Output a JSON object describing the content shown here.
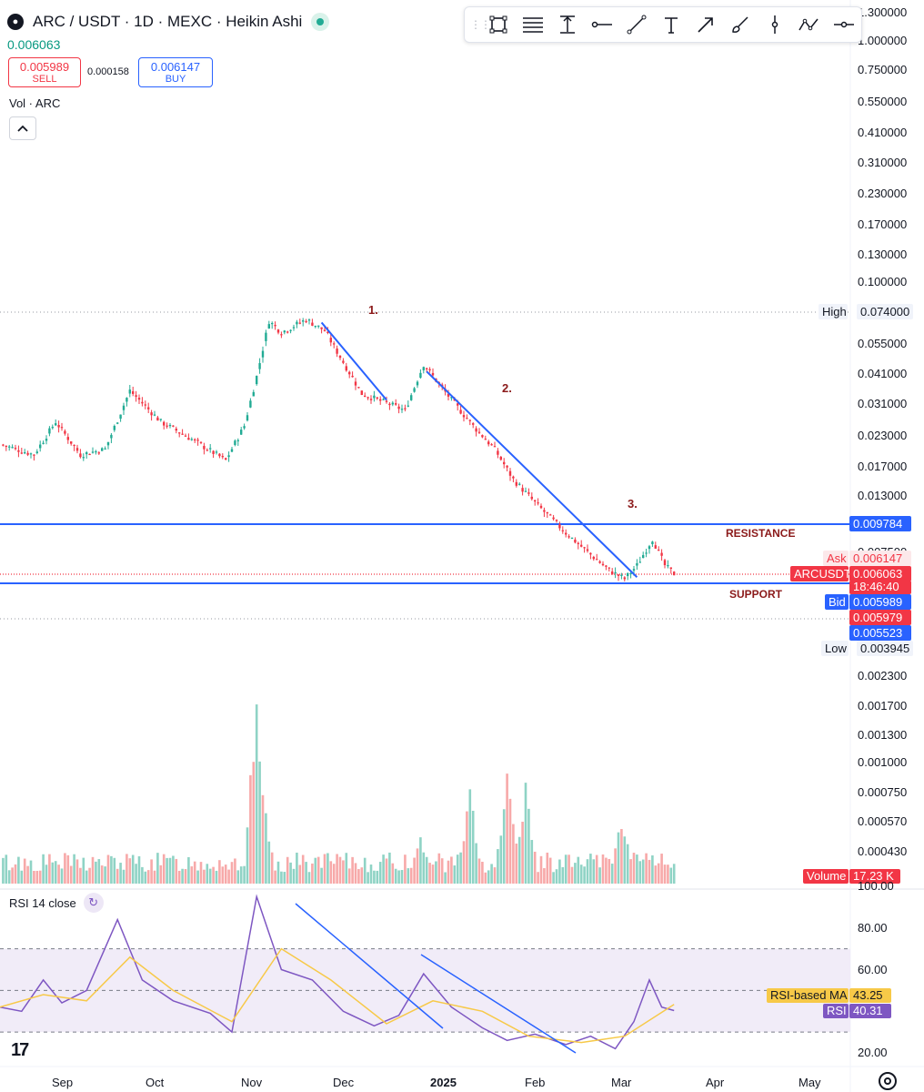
{
  "header": {
    "title": "ARC / USDT · 1D · MEXC · Heikin Ashi",
    "last_price": "0.006063"
  },
  "trade": {
    "sell_price": "0.005989",
    "sell_label": "SELL",
    "spread": "0.000158",
    "buy_price": "0.006147",
    "buy_label": "BUY"
  },
  "volume_indicator": {
    "label": "Vol · ARC",
    "collapse_icon": "chevron-up-icon"
  },
  "toolbar": {
    "icons": [
      "grip-icon",
      "rectangle-icon",
      "fib-retracement-icon",
      "price-range-icon",
      "horizontal-ray-icon",
      "trend-line-icon",
      "text-icon",
      "arrow-icon",
      "brush-icon",
      "vertical-line-icon",
      "path-icon",
      "horizontal-line-icon"
    ]
  },
  "rsi_indicator": {
    "label": "RSI 14 close",
    "icon": "refresh-icon"
  },
  "colors": {
    "up": "#22ab94",
    "down": "#f23645",
    "level_line": "#2962ff",
    "annotation": "#8b1a1a",
    "rsi": "#7e57c2",
    "rsi_ma": "#f7c948",
    "rsi_band": "#ede7f6"
  },
  "chart_data": [
    {
      "type": "candlestick",
      "style": "Heikin Ashi",
      "scale": "log",
      "price_axis_ticks": [
        "1.300000",
        "1.000000",
        "0.750000",
        "0.550000",
        "0.410000",
        "0.310000",
        "0.230000",
        "0.170000",
        "0.130000",
        "0.100000",
        "0.074000",
        "0.055000",
        "0.041000",
        "0.031000",
        "0.023000",
        "0.017000",
        "0.013000",
        "0.009784",
        "0.007500",
        "0.006147",
        "0.006063",
        "0.005989",
        "0.005979",
        "0.005523",
        "0.003945"
      ],
      "time_axis_ticks": [
        "Sep",
        "Oct",
        "Nov",
        "Dec",
        "2025",
        "Feb",
        "Mar",
        "Apr",
        "May"
      ],
      "price_path": [
        [
          "2024-08-25",
          0.021
        ],
        [
          "2024-09-05",
          0.019
        ],
        [
          "2024-09-12",
          0.026
        ],
        [
          "2024-09-20",
          0.019
        ],
        [
          "2024-09-28",
          0.02
        ],
        [
          "2024-10-06",
          0.035
        ],
        [
          "2024-10-16",
          0.026
        ],
        [
          "2024-10-26",
          0.022
        ],
        [
          "2024-11-06",
          0.018
        ],
        [
          "2024-11-12",
          0.025
        ],
        [
          "2024-11-16",
          0.04
        ],
        [
          "2024-11-20",
          0.068
        ],
        [
          "2024-11-24",
          0.061
        ],
        [
          "2024-12-02",
          0.069
        ],
        [
          "2024-12-08",
          0.062
        ],
        [
          "2024-12-20",
          0.034
        ],
        [
          "2025-01-03",
          0.029
        ],
        [
          "2025-01-09",
          0.045
        ],
        [
          "2025-01-18",
          0.032
        ],
        [
          "2025-01-25",
          0.025
        ],
        [
          "2025-02-01",
          0.02
        ],
        [
          "2025-02-07",
          0.015
        ],
        [
          "2025-02-14",
          0.012
        ],
        [
          "2025-02-24",
          0.009
        ],
        [
          "2025-03-03",
          0.0075
        ],
        [
          "2025-03-10",
          0.0063
        ],
        [
          "2025-03-15",
          0.0058
        ],
        [
          "2025-03-19",
          0.0066
        ],
        [
          "2025-03-24",
          0.0085
        ],
        [
          "2025-03-28",
          0.0066
        ],
        [
          "2025-03-31",
          0.0061
        ]
      ],
      "levels": [
        {
          "label": "RESISTANCE",
          "price": 0.009784
        },
        {
          "label": "SUPPORT",
          "price": 0.005979
        }
      ],
      "annotations": [
        "1.",
        "2.",
        "3."
      ],
      "trendlines": [
        {
          "from": [
            "2024-12-07",
            0.067
          ],
          "to": [
            "2024-12-28",
            0.032
          ]
        },
        {
          "from": [
            "2025-01-10",
            0.042
          ],
          "to": [
            "2025-03-19",
            0.0059
          ]
        }
      ],
      "price_labels": {
        "high": {
          "label": "High",
          "value": "0.074000"
        },
        "resistance": {
          "value": "0.009784"
        },
        "ask": {
          "label": "Ask",
          "value": "0.006147"
        },
        "last": {
          "label": "ARCUSDT",
          "value": "0.006063",
          "countdown": "18:46:40"
        },
        "bid": {
          "label": "Bid",
          "value": "0.005989"
        },
        "support": {
          "value": "0.005979"
        },
        "marker": {
          "value": "0.005523"
        },
        "low": {
          "label": "Low",
          "value": "0.003945"
        }
      }
    },
    {
      "type": "bar",
      "title": "Volume",
      "axis_ticks": [
        "0.002300",
        "0.001700",
        "0.001300",
        "0.001000",
        "0.000750",
        "0.000570",
        "0.000430",
        "0"
      ],
      "last_value_label": "Volume",
      "last_value": "17.23 K",
      "volume_spikes": [
        [
          "2024-11-16",
          0.0024
        ],
        [
          "2024-11-18",
          0.0011
        ],
        [
          "2025-01-08",
          0.00055
        ],
        [
          "2025-01-24",
          0.0011
        ],
        [
          "2025-02-05",
          0.0013
        ],
        [
          "2025-02-11",
          0.0012
        ],
        [
          "2025-03-14",
          0.0008
        ]
      ]
    },
    {
      "type": "line",
      "title": "RSI 14 close",
      "axis_ticks": [
        "100.00",
        "80.00",
        "60.00",
        "20.00"
      ],
      "ylim": [
        0,
        100
      ],
      "bands": [
        30,
        50,
        70
      ],
      "series": [
        {
          "name": "RSI",
          "current": "40.31",
          "values": [
            [
              "2024-08-25",
              42
            ],
            [
              "2024-09-01",
              40
            ],
            [
              "2024-09-08",
              55
            ],
            [
              "2024-09-14",
              44
            ],
            [
              "2024-09-22",
              50
            ],
            [
              "2024-10-02",
              84
            ],
            [
              "2024-10-10",
              55
            ],
            [
              "2024-10-20",
              45
            ],
            [
              "2024-11-01",
              39
            ],
            [
              "2024-11-08",
              30
            ],
            [
              "2024-11-16",
              95
            ],
            [
              "2024-11-24",
              60
            ],
            [
              "2024-12-04",
              55
            ],
            [
              "2024-12-14",
              40
            ],
            [
              "2024-12-24",
              33
            ],
            [
              "2025-01-01",
              38
            ],
            [
              "2025-01-09",
              58
            ],
            [
              "2025-01-18",
              42
            ],
            [
              "2025-01-28",
              32
            ],
            [
              "2025-02-05",
              26
            ],
            [
              "2025-02-14",
              29
            ],
            [
              "2025-02-24",
              24
            ],
            [
              "2025-03-04",
              28
            ],
            [
              "2025-03-12",
              22
            ],
            [
              "2025-03-18",
              35
            ],
            [
              "2025-03-23",
              55
            ],
            [
              "2025-03-27",
              42
            ],
            [
              "2025-03-31",
              40.31
            ]
          ]
        },
        {
          "name": "RSI-based MA",
          "current": "43.25",
          "values": [
            [
              "2024-08-25",
              42
            ],
            [
              "2024-09-08",
              48
            ],
            [
              "2024-09-22",
              45
            ],
            [
              "2024-10-06",
              66
            ],
            [
              "2024-10-20",
              50
            ],
            [
              "2024-11-08",
              35
            ],
            [
              "2024-11-24",
              70
            ],
            [
              "2024-12-10",
              55
            ],
            [
              "2024-12-28",
              34
            ],
            [
              "2025-01-12",
              45
            ],
            [
              "2025-01-28",
              40
            ],
            [
              "2025-02-12",
              28
            ],
            [
              "2025-03-01",
              25
            ],
            [
              "2025-03-15",
              28
            ],
            [
              "2025-03-31",
              43.25
            ]
          ]
        }
      ]
    }
  ]
}
